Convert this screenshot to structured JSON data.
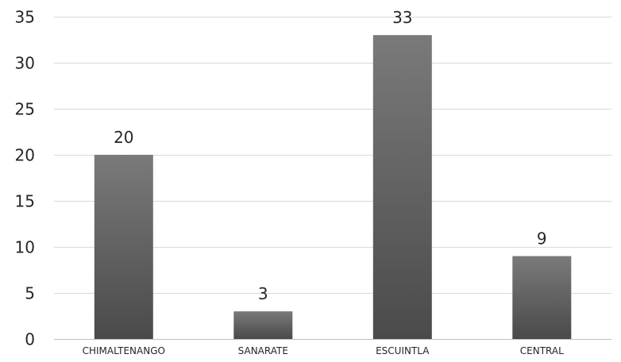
{
  "chart_data": {
    "type": "bar",
    "categories": [
      "CHIMALTENANGO",
      "SANARATE",
      "ESCUINTLA",
      "CENTRAL"
    ],
    "values": [
      20,
      3,
      33,
      9
    ],
    "title": "",
    "xlabel": "",
    "ylabel": "",
    "ylim": [
      0,
      35
    ],
    "yticks": [
      0,
      5,
      10,
      15,
      20,
      25,
      30,
      35
    ],
    "grid": true,
    "legend": "none",
    "data_labels": true,
    "colors": {
      "bar_top": "#7a7a7a",
      "bar_bottom": "#4a4a4a",
      "grid": "#d9d9d9",
      "text": "#262626"
    }
  }
}
